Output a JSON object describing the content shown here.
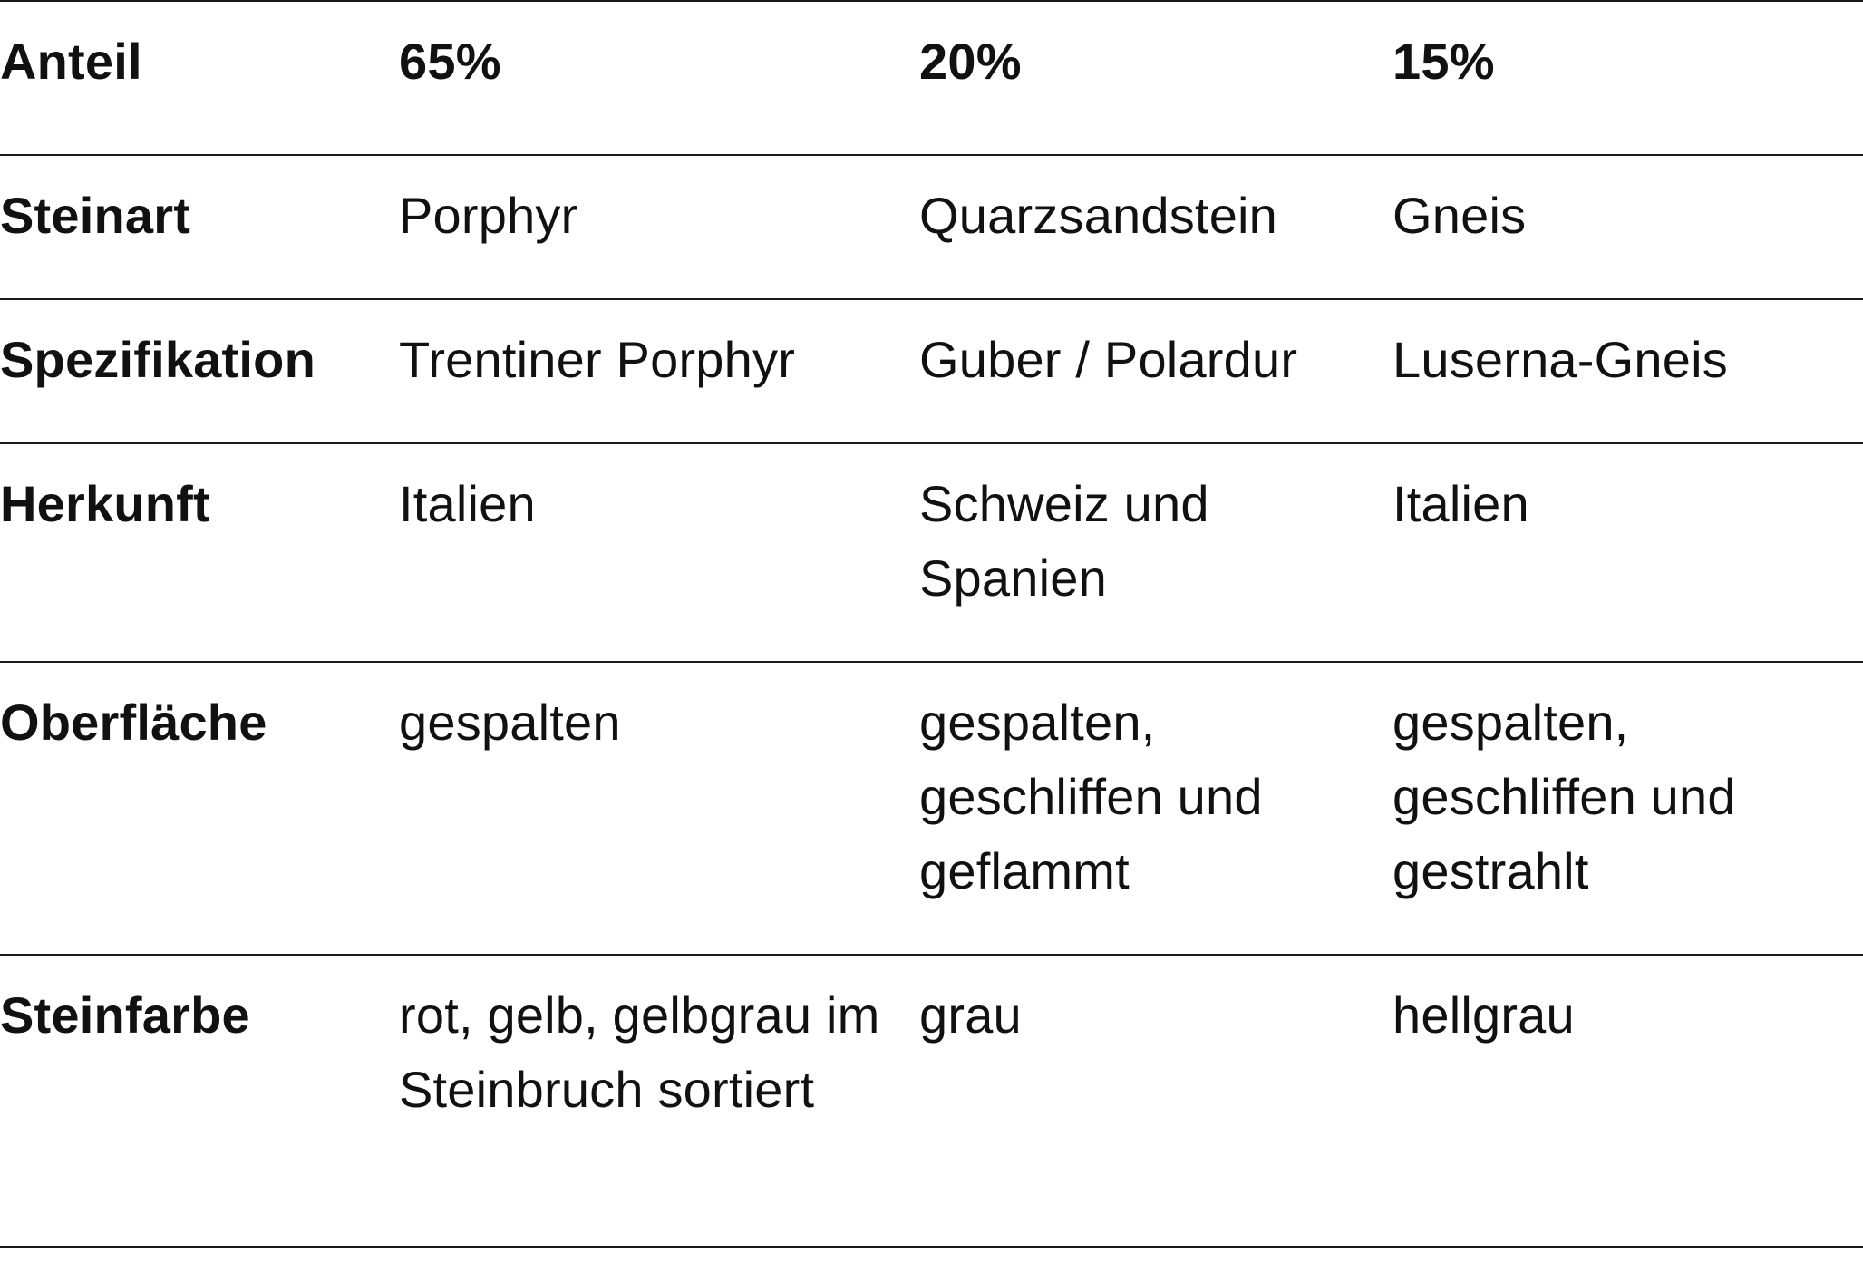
{
  "table": {
    "rows": [
      {
        "label": "Anteil",
        "values": [
          "65%",
          "20%",
          "15%"
        ]
      },
      {
        "label": "Steinart",
        "values": [
          "Porphyr",
          "Quarzsandstein",
          "Gneis"
        ]
      },
      {
        "label": "Spezifikation",
        "values": [
          "Trentiner Porphyr",
          "Guber / Polardur",
          "Luserna-Gneis"
        ]
      },
      {
        "label": "Herkunft",
        "values": [
          "Italien",
          "Schweiz und Spanien",
          "Italien"
        ]
      },
      {
        "label": "Oberfläche",
        "values": [
          "gespalten",
          "gespalten, geschliffen und geflammt",
          "gespalten, geschliffen und gestrahlt"
        ]
      },
      {
        "label": "Steinfarbe",
        "values": [
          "rot, gelb, gelbgrau im Steinbruch sortiert",
          "grau",
          "hellgrau"
        ]
      }
    ]
  }
}
